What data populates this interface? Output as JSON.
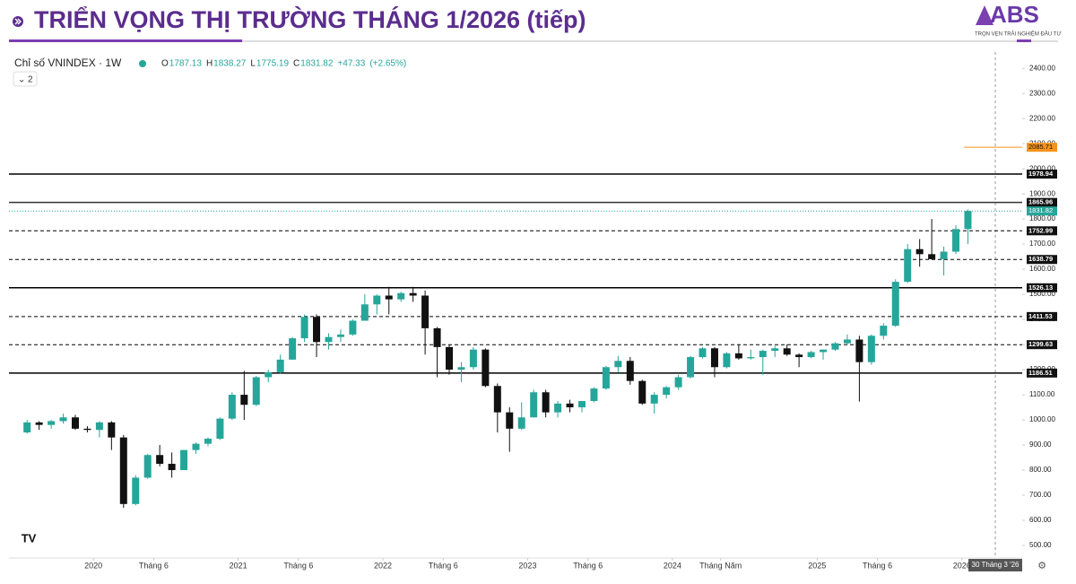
{
  "header": {
    "title": "TRIỂN VỌNG THỊ TRƯỜNG THÁNG 1/2026 (tiếp)",
    "logo": "ABS",
    "tagline": "TRỌN VẸN TRẢI NGHIỆM ĐẦU TƯ"
  },
  "chart_data": {
    "type": "candlestick",
    "title": "Chỉ số VNINDEX · 1W",
    "legend": {
      "o_label": "O",
      "o": 1787.13,
      "h_label": "H",
      "h": 1838.27,
      "l_label": "L",
      "l": 1775.19,
      "c_label": "C",
      "c": 1831.82,
      "change": "+47.33",
      "change_pct": "(+2.65%)"
    },
    "indicator_count": 2,
    "crosshair_label": "30 Tháng 3 '26",
    "up_color": "#26a69a",
    "down_color": "#111111",
    "xlim": [
      "2019-06",
      "2026-06"
    ],
    "xticks": [
      {
        "value": "2020-01",
        "label": "2020"
      },
      {
        "value": "2020-06",
        "label": "Tháng 6"
      },
      {
        "value": "2021-01",
        "label": "2021"
      },
      {
        "value": "2021-06",
        "label": "Tháng 6"
      },
      {
        "value": "2022-01",
        "label": "2022"
      },
      {
        "value": "2022-06",
        "label": "Tháng 6"
      },
      {
        "value": "2023-01",
        "label": "2023"
      },
      {
        "value": "2023-06",
        "label": "Tháng 6"
      },
      {
        "value": "2024-01",
        "label": "2024"
      },
      {
        "value": "2024-05",
        "label": "Tháng Năm"
      },
      {
        "value": "2025-01",
        "label": "2025"
      },
      {
        "value": "2025-06",
        "label": "Tháng 6"
      },
      {
        "value": "2026-01",
        "label": "2026"
      }
    ],
    "ylim": [
      450,
      2465
    ],
    "yticks": [
      {
        "value": 500,
        "label": "500.00"
      },
      {
        "value": 600,
        "label": "600.00"
      },
      {
        "value": 700,
        "label": "700.00"
      },
      {
        "value": 800,
        "label": "800.00"
      },
      {
        "value": 900,
        "label": "900.00"
      },
      {
        "value": 1000,
        "label": "1000.00"
      },
      {
        "value": 1100,
        "label": "1100.00"
      },
      {
        "value": 1200,
        "label": "1200.00"
      },
      {
        "value": 1300,
        "label": "1300.00"
      },
      {
        "value": 1400,
        "label": "1400.00"
      },
      {
        "value": 1500,
        "label": "1500.00"
      },
      {
        "value": 1600,
        "label": "1600.00"
      },
      {
        "value": 1700,
        "label": "1700.00"
      },
      {
        "value": 1800,
        "label": "1800.00"
      },
      {
        "value": 1900,
        "label": "1900.00"
      },
      {
        "value": 2000,
        "label": "2000.00"
      },
      {
        "value": 2100,
        "label": "2100.00"
      },
      {
        "value": 2200,
        "label": "2200.00"
      },
      {
        "value": 2300,
        "label": "2300.00"
      },
      {
        "value": 2400,
        "label": "2400.00"
      }
    ],
    "levels": [
      {
        "value": 1978.94,
        "style": "solid",
        "color": "#000000"
      },
      {
        "value": 1865.96,
        "style": "solid",
        "color": "#333333"
      },
      {
        "value": 1752.99,
        "style": "dashed",
        "color": "#000000"
      },
      {
        "value": 1638.79,
        "style": "dashed",
        "color": "#000000"
      },
      {
        "value": 1526.13,
        "style": "solid",
        "color": "#000000"
      },
      {
        "value": 1411.53,
        "style": "dashed",
        "color": "#000000"
      },
      {
        "value": 1299.63,
        "style": "dashed",
        "color": "#000000"
      },
      {
        "value": 1186.51,
        "style": "solid",
        "color": "#000000"
      }
    ],
    "last_price": {
      "value": 1831.82,
      "color": "#26a69a"
    },
    "target": {
      "value": 2085.71,
      "color": "#f7931a"
    },
    "candles": [
      {
        "x": "2019-07",
        "o": 950,
        "h": 1000,
        "l": 945,
        "c": 990
      },
      {
        "x": "2019-08",
        "o": 990,
        "h": 995,
        "l": 960,
        "c": 980
      },
      {
        "x": "2019-09",
        "o": 980,
        "h": 1000,
        "l": 965,
        "c": 995
      },
      {
        "x": "2019-10",
        "o": 995,
        "h": 1025,
        "l": 985,
        "c": 1010
      },
      {
        "x": "2019-11",
        "o": 1010,
        "h": 1020,
        "l": 960,
        "c": 965
      },
      {
        "x": "2019-12",
        "o": 965,
        "h": 975,
        "l": 950,
        "c": 960
      },
      {
        "x": "2020-01",
        "o": 960,
        "h": 995,
        "l": 930,
        "c": 990
      },
      {
        "x": "2020-02",
        "o": 990,
        "h": 995,
        "l": 880,
        "c": 930
      },
      {
        "x": "2020-03",
        "o": 930,
        "h": 940,
        "l": 650,
        "c": 665
      },
      {
        "x": "2020-04",
        "o": 665,
        "h": 780,
        "l": 660,
        "c": 770
      },
      {
        "x": "2020-05",
        "o": 770,
        "h": 865,
        "l": 765,
        "c": 860
      },
      {
        "x": "2020-06",
        "o": 860,
        "h": 900,
        "l": 815,
        "c": 825
      },
      {
        "x": "2020-07",
        "o": 825,
        "h": 870,
        "l": 770,
        "c": 800
      },
      {
        "x": "2020-08",
        "o": 800,
        "h": 880,
        "l": 800,
        "c": 880
      },
      {
        "x": "2020-09",
        "o": 880,
        "h": 910,
        "l": 865,
        "c": 905
      },
      {
        "x": "2020-10",
        "o": 905,
        "h": 930,
        "l": 895,
        "c": 925
      },
      {
        "x": "2020-11",
        "o": 925,
        "h": 1010,
        "l": 920,
        "c": 1005
      },
      {
        "x": "2020-12",
        "o": 1005,
        "h": 1110,
        "l": 1000,
        "c": 1100
      },
      {
        "x": "2021-01",
        "o": 1100,
        "h": 1195,
        "l": 1000,
        "c": 1060
      },
      {
        "x": "2021-02",
        "o": 1060,
        "h": 1175,
        "l": 1055,
        "c": 1170
      },
      {
        "x": "2021-03",
        "o": 1170,
        "h": 1200,
        "l": 1150,
        "c": 1190
      },
      {
        "x": "2021-04",
        "o": 1190,
        "h": 1260,
        "l": 1185,
        "c": 1240
      },
      {
        "x": "2021-05",
        "o": 1240,
        "h": 1330,
        "l": 1240,
        "c": 1325
      },
      {
        "x": "2021-06",
        "o": 1325,
        "h": 1420,
        "l": 1310,
        "c": 1410
      },
      {
        "x": "2021-07",
        "o": 1410,
        "h": 1420,
        "l": 1250,
        "c": 1310
      },
      {
        "x": "2021-08",
        "o": 1310,
        "h": 1345,
        "l": 1280,
        "c": 1330
      },
      {
        "x": "2021-09",
        "o": 1330,
        "h": 1360,
        "l": 1310,
        "c": 1340
      },
      {
        "x": "2021-10",
        "o": 1340,
        "h": 1400,
        "l": 1335,
        "c": 1395
      },
      {
        "x": "2021-11",
        "o": 1395,
        "h": 1500,
        "l": 1395,
        "c": 1460
      },
      {
        "x": "2021-12",
        "o": 1460,
        "h": 1500,
        "l": 1420,
        "c": 1495
      },
      {
        "x": "2022-01",
        "o": 1495,
        "h": 1530,
        "l": 1420,
        "c": 1480
      },
      {
        "x": "2022-02",
        "o": 1480,
        "h": 1510,
        "l": 1470,
        "c": 1505
      },
      {
        "x": "2022-03",
        "o": 1505,
        "h": 1530,
        "l": 1470,
        "c": 1495
      },
      {
        "x": "2022-04",
        "o": 1495,
        "h": 1515,
        "l": 1260,
        "c": 1365
      },
      {
        "x": "2022-05",
        "o": 1365,
        "h": 1370,
        "l": 1170,
        "c": 1290
      },
      {
        "x": "2022-06",
        "o": 1290,
        "h": 1300,
        "l": 1180,
        "c": 1200
      },
      {
        "x": "2022-07",
        "o": 1200,
        "h": 1230,
        "l": 1150,
        "c": 1210
      },
      {
        "x": "2022-08",
        "o": 1210,
        "h": 1290,
        "l": 1200,
        "c": 1280
      },
      {
        "x": "2022-09",
        "o": 1280,
        "h": 1285,
        "l": 1130,
        "c": 1135
      },
      {
        "x": "2022-10",
        "o": 1135,
        "h": 1145,
        "l": 950,
        "c": 1030
      },
      {
        "x": "2022-11",
        "o": 1030,
        "h": 1050,
        "l": 873,
        "c": 965
      },
      {
        "x": "2022-12",
        "o": 965,
        "h": 1070,
        "l": 960,
        "c": 1010
      },
      {
        "x": "2023-01",
        "o": 1010,
        "h": 1120,
        "l": 1010,
        "c": 1110
      },
      {
        "x": "2023-02",
        "o": 1110,
        "h": 1120,
        "l": 1010,
        "c": 1030
      },
      {
        "x": "2023-03",
        "o": 1030,
        "h": 1075,
        "l": 1010,
        "c": 1065
      },
      {
        "x": "2023-04",
        "o": 1065,
        "h": 1080,
        "l": 1030,
        "c": 1050
      },
      {
        "x": "2023-05",
        "o": 1050,
        "h": 1075,
        "l": 1030,
        "c": 1075
      },
      {
        "x": "2023-06",
        "o": 1075,
        "h": 1130,
        "l": 1070,
        "c": 1125
      },
      {
        "x": "2023-07",
        "o": 1125,
        "h": 1215,
        "l": 1120,
        "c": 1210
      },
      {
        "x": "2023-08",
        "o": 1210,
        "h": 1255,
        "l": 1190,
        "c": 1235
      },
      {
        "x": "2023-09",
        "o": 1235,
        "h": 1250,
        "l": 1140,
        "c": 1155
      },
      {
        "x": "2023-10",
        "o": 1155,
        "h": 1160,
        "l": 1060,
        "c": 1065
      },
      {
        "x": "2023-11",
        "o": 1065,
        "h": 1110,
        "l": 1025,
        "c": 1100
      },
      {
        "x": "2023-12",
        "o": 1100,
        "h": 1135,
        "l": 1085,
        "c": 1130
      },
      {
        "x": "2024-01",
        "o": 1130,
        "h": 1180,
        "l": 1120,
        "c": 1170
      },
      {
        "x": "2024-02",
        "o": 1170,
        "h": 1255,
        "l": 1165,
        "c": 1250
      },
      {
        "x": "2024-03",
        "o": 1250,
        "h": 1290,
        "l": 1245,
        "c": 1285
      },
      {
        "x": "2024-04",
        "o": 1285,
        "h": 1290,
        "l": 1170,
        "c": 1210
      },
      {
        "x": "2024-05",
        "o": 1210,
        "h": 1270,
        "l": 1205,
        "c": 1265
      },
      {
        "x": "2024-06",
        "o": 1265,
        "h": 1300,
        "l": 1240,
        "c": 1245
      },
      {
        "x": "2024-07",
        "o": 1245,
        "h": 1280,
        "l": 1240,
        "c": 1250
      },
      {
        "x": "2024-08",
        "o": 1250,
        "h": 1280,
        "l": 1180,
        "c": 1275
      },
      {
        "x": "2024-09",
        "o": 1275,
        "h": 1295,
        "l": 1250,
        "c": 1285
      },
      {
        "x": "2024-10",
        "o": 1285,
        "h": 1300,
        "l": 1255,
        "c": 1260
      },
      {
        "x": "2024-11",
        "o": 1260,
        "h": 1265,
        "l": 1210,
        "c": 1250
      },
      {
        "x": "2024-12",
        "o": 1250,
        "h": 1275,
        "l": 1245,
        "c": 1270
      },
      {
        "x": "2025-01",
        "o": 1270,
        "h": 1280,
        "l": 1240,
        "c": 1280
      },
      {
        "x": "2025-02",
        "o": 1280,
        "h": 1310,
        "l": 1275,
        "c": 1305
      },
      {
        "x": "2025-03",
        "o": 1305,
        "h": 1340,
        "l": 1300,
        "c": 1320
      },
      {
        "x": "2025-04",
        "o": 1320,
        "h": 1335,
        "l": 1073,
        "c": 1230
      },
      {
        "x": "2025-05",
        "o": 1230,
        "h": 1340,
        "l": 1220,
        "c": 1335
      },
      {
        "x": "2025-06",
        "o": 1335,
        "h": 1385,
        "l": 1320,
        "c": 1375
      },
      {
        "x": "2025-07",
        "o": 1375,
        "h": 1560,
        "l": 1370,
        "c": 1550
      },
      {
        "x": "2025-08",
        "o": 1550,
        "h": 1700,
        "l": 1545,
        "c": 1680
      },
      {
        "x": "2025-09",
        "o": 1680,
        "h": 1720,
        "l": 1610,
        "c": 1660
      },
      {
        "x": "2025-10",
        "o": 1660,
        "h": 1800,
        "l": 1640,
        "c": 1640
      },
      {
        "x": "2025-11",
        "o": 1640,
        "h": 1690,
        "l": 1575,
        "c": 1670
      },
      {
        "x": "2025-12",
        "o": 1670,
        "h": 1775,
        "l": 1660,
        "c": 1760
      },
      {
        "x": "2026-01",
        "o": 1760,
        "h": 1838,
        "l": 1700,
        "c": 1832
      }
    ]
  }
}
